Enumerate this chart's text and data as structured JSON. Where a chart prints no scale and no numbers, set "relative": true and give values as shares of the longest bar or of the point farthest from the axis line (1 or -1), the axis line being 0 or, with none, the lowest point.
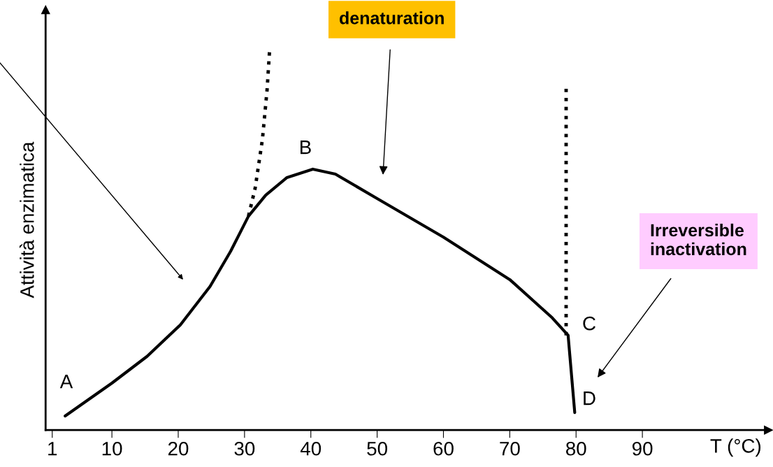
{
  "chart_data": {
    "type": "line",
    "relative": true,
    "xlabel": "T (°C)",
    "ylabel": "Attività enzimatica",
    "xlim": [
      0,
      109
    ],
    "xticks": [
      1,
      10,
      20,
      30,
      40,
      50,
      60,
      70,
      80,
      90
    ],
    "tick_labels": "x",
    "grid": false,
    "marker": "none",
    "series": [
      {
        "color": "#000000",
        "line_style": "solid",
        "x": [
          2.95,
          10,
          15.3,
          20.3,
          24.8,
          27.9,
          30.6,
          33.2,
          36.4,
          40.3,
          43.7,
          50,
          60,
          70,
          76.4,
          78.8,
          79.8
        ],
        "values": [
          0.037,
          0.123,
          0.193,
          0.275,
          0.376,
          0.468,
          0.56,
          0.615,
          0.661,
          0.683,
          0.67,
          0.606,
          0.505,
          0.394,
          0.294,
          0.248,
          0.046
        ]
      },
      {
        "color": "#000000",
        "line_style": "dotted",
        "x": [
          30.6,
          31.6,
          32.7,
          33.4,
          33.8
        ],
        "values": [
          0.56,
          0.633,
          0.761,
          0.89,
          1
        ]
      },
      {
        "color": "#000000",
        "line_style": "dotted",
        "x": [
          78.5,
          78.5
        ],
        "values": [
          0.248,
          0.899
        ]
      }
    ],
    "annotations": [
      "A",
      "B",
      "C",
      "D",
      "denaturation",
      "Irreversible\ninactivation"
    ]
  }
}
